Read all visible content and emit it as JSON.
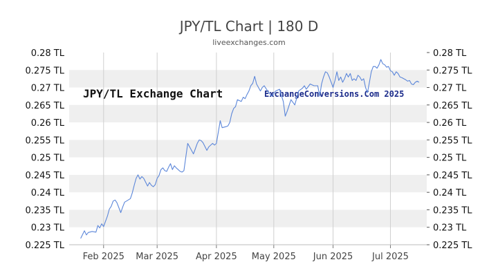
{
  "header": {
    "title": "JPY/TL Chart | 180 D",
    "subtitle": "liveexchanges.com"
  },
  "watermarks": {
    "left": "JPY/TL Exchange Chart",
    "right": "ExchangeConversions.Com 2025"
  },
  "colors": {
    "line": "#5b86d9",
    "band": "#efefef",
    "grid": "#cfcfcf",
    "watermark_right": "#1a2a8a"
  },
  "chart_data": {
    "type": "line",
    "title": "JPY/TL Chart | 180 D",
    "xlabel": "",
    "ylabel": "",
    "ylim": [
      0.225,
      0.28
    ],
    "y_ticks": [
      {
        "value": 0.28,
        "label": "0.28 TL"
      },
      {
        "value": 0.275,
        "label": "0.275 TL"
      },
      {
        "value": 0.27,
        "label": "0.27 TL"
      },
      {
        "value": 0.265,
        "label": "0.265 TL"
      },
      {
        "value": 0.26,
        "label": "0.26 TL"
      },
      {
        "value": 0.255,
        "label": "0.255 TL"
      },
      {
        "value": 0.25,
        "label": "0.25 TL"
      },
      {
        "value": 0.245,
        "label": "0.245 TL"
      },
      {
        "value": 0.24,
        "label": "0.24 TL"
      },
      {
        "value": 0.235,
        "label": "0.235 TL"
      },
      {
        "value": 0.23,
        "label": "0.23 TL"
      },
      {
        "value": 0.225,
        "label": "0.225 TL"
      }
    ],
    "x_ticks": [
      {
        "day": 0,
        "label": "Feb 2025"
      },
      {
        "day": 28,
        "label": "Mar 2025"
      },
      {
        "day": 59,
        "label": "Apr 2025"
      },
      {
        "day": 89,
        "label": "May 2025"
      },
      {
        "day": 120,
        "label": "Jun 2025"
      },
      {
        "day": 150,
        "label": "Jul 2025"
      }
    ],
    "x_range_days": [
      -18,
      169
    ],
    "grid": true,
    "points": [
      [
        -12,
        0.2268
      ],
      [
        -10,
        0.229
      ],
      [
        -9,
        0.2278
      ],
      [
        -8,
        0.2285
      ],
      [
        -6,
        0.2288
      ],
      [
        -4,
        0.2286
      ],
      [
        -3,
        0.2305
      ],
      [
        -2,
        0.2298
      ],
      [
        -1,
        0.231
      ],
      [
        0,
        0.2302
      ],
      [
        2,
        0.2332
      ],
      [
        3,
        0.2352
      ],
      [
        4,
        0.236
      ],
      [
        5,
        0.2375
      ],
      [
        6,
        0.2378
      ],
      [
        7,
        0.237
      ],
      [
        9,
        0.2342
      ],
      [
        10,
        0.2358
      ],
      [
        11,
        0.2372
      ],
      [
        12,
        0.2375
      ],
      [
        14,
        0.2382
      ],
      [
        15,
        0.2398
      ],
      [
        16,
        0.242
      ],
      [
        17,
        0.244
      ],
      [
        18,
        0.245
      ],
      [
        19,
        0.2438
      ],
      [
        20,
        0.2445
      ],
      [
        21,
        0.244
      ],
      [
        23,
        0.2418
      ],
      [
        24,
        0.2428
      ],
      [
        25,
        0.242
      ],
      [
        26,
        0.2416
      ],
      [
        27,
        0.2422
      ],
      [
        28,
        0.244
      ],
      [
        29,
        0.2448
      ],
      [
        30,
        0.2465
      ],
      [
        31,
        0.247
      ],
      [
        32,
        0.2462
      ],
      [
        33,
        0.246
      ],
      [
        34,
        0.2472
      ],
      [
        35,
        0.2482
      ],
      [
        36,
        0.2465
      ],
      [
        37,
        0.2476
      ],
      [
        38,
        0.247
      ],
      [
        40,
        0.246
      ],
      [
        41,
        0.2458
      ],
      [
        42,
        0.2462
      ],
      [
        44,
        0.254
      ],
      [
        45,
        0.253
      ],
      [
        46,
        0.252
      ],
      [
        47,
        0.251
      ],
      [
        48,
        0.2525
      ],
      [
        49,
        0.254
      ],
      [
        50,
        0.255
      ],
      [
        51,
        0.2548
      ],
      [
        52,
        0.2542
      ],
      [
        54,
        0.252
      ],
      [
        55,
        0.253
      ],
      [
        57,
        0.254
      ],
      [
        58,
        0.2535
      ],
      [
        59,
        0.254
      ],
      [
        61,
        0.2605
      ],
      [
        62,
        0.2585
      ],
      [
        64,
        0.2588
      ],
      [
        65,
        0.259
      ],
      [
        66,
        0.26
      ],
      [
        67,
        0.2625
      ],
      [
        68,
        0.264
      ],
      [
        69,
        0.2645
      ],
      [
        70,
        0.2665
      ],
      [
        72,
        0.266
      ],
      [
        73,
        0.2672
      ],
      [
        74,
        0.2668
      ],
      [
        75,
        0.268
      ],
      [
        76,
        0.269
      ],
      [
        77,
        0.2705
      ],
      [
        78,
        0.2712
      ],
      [
        79,
        0.2732
      ],
      [
        80,
        0.271
      ],
      [
        81,
        0.27
      ],
      [
        82,
        0.269
      ],
      [
        83,
        0.27
      ],
      [
        84,
        0.2705
      ],
      [
        86,
        0.2688
      ],
      [
        88,
        0.2675
      ],
      [
        90,
        0.269
      ],
      [
        92,
        0.2695
      ],
      [
        94,
        0.266
      ],
      [
        95,
        0.2618
      ],
      [
        96,
        0.2632
      ],
      [
        98,
        0.2665
      ],
      [
        100,
        0.265
      ],
      [
        102,
        0.269
      ],
      [
        104,
        0.2698
      ],
      [
        105,
        0.2705
      ],
      [
        106,
        0.2695
      ],
      [
        108,
        0.271
      ],
      [
        110,
        0.2705
      ],
      [
        112,
        0.2705
      ],
      [
        113,
        0.2675
      ],
      [
        114,
        0.271
      ],
      [
        115,
        0.273
      ],
      [
        116,
        0.2745
      ],
      [
        117,
        0.2742
      ],
      [
        118,
        0.273
      ],
      [
        119,
        0.2715
      ],
      [
        120,
        0.27
      ],
      [
        121,
        0.272
      ],
      [
        122,
        0.2745
      ],
      [
        123,
        0.272
      ],
      [
        124,
        0.273
      ],
      [
        125,
        0.2715
      ],
      [
        126,
        0.2725
      ],
      [
        127,
        0.274
      ],
      [
        128,
        0.273
      ],
      [
        129,
        0.274
      ],
      [
        130,
        0.272
      ],
      [
        131,
        0.2725
      ],
      [
        132,
        0.272
      ],
      [
        133,
        0.2735
      ],
      [
        134,
        0.273
      ],
      [
        135,
        0.272
      ],
      [
        136,
        0.2725
      ],
      [
        137,
        0.27
      ],
      [
        138,
        0.2685
      ],
      [
        139,
        0.2715
      ],
      [
        140,
        0.2745
      ],
      [
        141,
        0.276
      ],
      [
        142,
        0.276
      ],
      [
        143,
        0.2755
      ],
      [
        144,
        0.2765
      ],
      [
        145,
        0.278
      ],
      [
        146,
        0.2768
      ],
      [
        147,
        0.2765
      ],
      [
        148,
        0.2758
      ],
      [
        149,
        0.276
      ],
      [
        150,
        0.2748
      ],
      [
        151,
        0.2745
      ],
      [
        152,
        0.2735
      ],
      [
        153,
        0.2745
      ],
      [
        154,
        0.274
      ],
      [
        155,
        0.273
      ],
      [
        156,
        0.2728
      ],
      [
        157,
        0.2725
      ],
      [
        158,
        0.2722
      ],
      [
        159,
        0.2718
      ],
      [
        160,
        0.272
      ],
      [
        161,
        0.271
      ],
      [
        162,
        0.2708
      ],
      [
        163,
        0.2715
      ],
      [
        164,
        0.2718
      ],
      [
        165,
        0.2715
      ]
    ]
  }
}
